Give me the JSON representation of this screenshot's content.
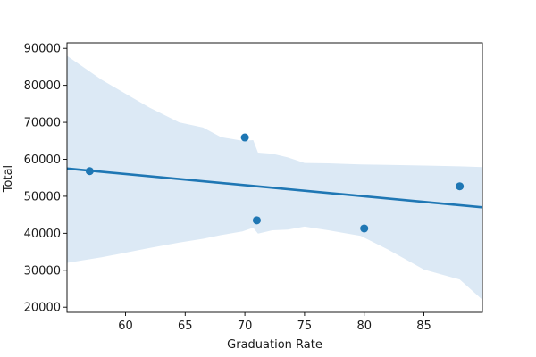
{
  "chart_data": {
    "type": "scatter",
    "title": "",
    "xlabel": "Graduation Rate",
    "ylabel": "Total",
    "xlim": [
      55.1,
      89.9
    ],
    "ylim": [
      18600,
      91500
    ],
    "x_ticks": [
      60,
      65,
      70,
      75,
      80,
      85
    ],
    "x_tick_labels": [
      "60",
      "65",
      "70",
      "75",
      "80",
      "85"
    ],
    "y_ticks": [
      20000,
      30000,
      40000,
      50000,
      60000,
      70000,
      80000,
      90000
    ],
    "y_tick_labels": [
      "20000",
      "30000",
      "40000",
      "50000",
      "60000",
      "70000",
      "80000",
      "90000"
    ],
    "grid": false,
    "colors": {
      "points": "#1f77b4",
      "line": "#1f77b4",
      "band": "#dce9f5"
    },
    "points": [
      {
        "x": 57,
        "y": 56800
      },
      {
        "x": 70,
        "y": 65900
      },
      {
        "x": 71,
        "y": 43500
      },
      {
        "x": 80,
        "y": 41300
      },
      {
        "x": 88,
        "y": 52700
      }
    ],
    "regression_line": {
      "x": [
        55.1,
        89.9
      ],
      "y": [
        57500,
        47000
      ]
    },
    "confidence_band": {
      "x": [
        55.1,
        58,
        62,
        64.5,
        66.5,
        68,
        69.8,
        70.7,
        71.1,
        72.3,
        73.6,
        75,
        77,
        79.7,
        82,
        85,
        88,
        89.9
      ],
      "upper": [
        88000,
        81500,
        74000,
        70000,
        68600,
        66000,
        65000,
        65200,
        61800,
        61500,
        60500,
        59000,
        58900,
        58600,
        58500,
        58300,
        58100,
        57900
      ],
      "lower": [
        32000,
        33500,
        36000,
        37500,
        38500,
        39500,
        40500,
        41500,
        39900,
        40800,
        41000,
        41800,
        40800,
        39300,
        35600,
        30200,
        27500,
        22000
      ]
    }
  }
}
